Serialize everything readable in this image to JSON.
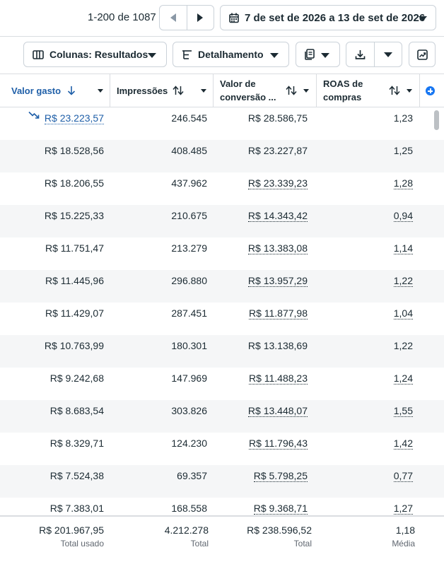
{
  "pagination": {
    "range_text": "1-200 de 1087"
  },
  "date_range": {
    "label": "7 de set de 2026 a 13 de set de 2026"
  },
  "toolbar": {
    "columns_label": "Colunas: Resultados",
    "breakdown_label": "Detalhamento"
  },
  "table": {
    "headers": {
      "spend": "Valor gasto",
      "impressions": "Impressões",
      "conversion_value": "Valor de conversão ...",
      "conversion_value_line1": "Valor de",
      "conversion_value_line2": "conversão ...",
      "roas_line1": "ROAS de",
      "roas_line2": "compras"
    },
    "rows": [
      {
        "spend": "R$ 23.223,57",
        "impressions": "246.545",
        "conversion_value": "R$ 28.586,75",
        "roas": "1,23",
        "spend_link": true,
        "conv_dotted": false,
        "roas_dotted": false
      },
      {
        "spend": "R$ 18.528,56",
        "impressions": "408.485",
        "conversion_value": "R$ 23.227,87",
        "roas": "1,25",
        "conv_dotted": false,
        "roas_dotted": false
      },
      {
        "spend": "R$ 18.206,55",
        "impressions": "437.962",
        "conversion_value": "R$ 23.339,23",
        "roas": "1,28",
        "conv_dotted": true,
        "roas_dotted": true
      },
      {
        "spend": "R$ 15.225,33",
        "impressions": "210.675",
        "conversion_value": "R$ 14.343,42",
        "roas": "0,94",
        "conv_dotted": true,
        "roas_dotted": true
      },
      {
        "spend": "R$ 11.751,47",
        "impressions": "213.279",
        "conversion_value": "R$ 13.383,08",
        "roas": "1,14",
        "conv_dotted": true,
        "roas_dotted": true
      },
      {
        "spend": "R$ 11.445,96",
        "impressions": "296.880",
        "conversion_value": "R$ 13.957,29",
        "roas": "1,22",
        "conv_dotted": true,
        "roas_dotted": true
      },
      {
        "spend": "R$ 11.429,07",
        "impressions": "287.451",
        "conversion_value": "R$ 11.877,98",
        "roas": "1,04",
        "conv_dotted": true,
        "roas_dotted": true
      },
      {
        "spend": "R$ 10.763,99",
        "impressions": "180.301",
        "conversion_value": "R$ 13.138,69",
        "roas": "1,22",
        "conv_dotted": false,
        "roas_dotted": false
      },
      {
        "spend": "R$ 9.242,68",
        "impressions": "147.969",
        "conversion_value": "R$ 11.488,23",
        "roas": "1,24",
        "conv_dotted": true,
        "roas_dotted": true
      },
      {
        "spend": "R$ 8.683,54",
        "impressions": "303.826",
        "conversion_value": "R$ 13.448,07",
        "roas": "1,55",
        "conv_dotted": true,
        "roas_dotted": true
      },
      {
        "spend": "R$ 8.329,71",
        "impressions": "124.230",
        "conversion_value": "R$ 11.796,43",
        "roas": "1,42",
        "conv_dotted": true,
        "roas_dotted": true
      },
      {
        "spend": "R$ 7.524,38",
        "impressions": "69.357",
        "conversion_value": "R$ 5.798,25",
        "roas": "0,77",
        "conv_dotted": true,
        "roas_dotted": true
      },
      {
        "spend": "R$ 7.383,01",
        "impressions": "168.558",
        "conversion_value": "R$ 9.368,71",
        "roas": "1,27",
        "conv_dotted": true,
        "roas_dotted": true
      }
    ],
    "totals": {
      "spend": "R$ 201.967,95",
      "spend_label": "Total usado",
      "impressions": "4.212.278",
      "impressions_label": "Total",
      "conversion_value": "R$ 238.596,52",
      "conversion_value_label": "Total",
      "roas": "1,18",
      "roas_label": "Média"
    }
  },
  "icons": {
    "calendar": "calendar-icon",
    "columns": "columns-icon",
    "breakdown": "breakdown-icon",
    "reports": "reports-icon",
    "export": "download-icon",
    "chart": "chart-icon",
    "trend": "trend-down-icon"
  },
  "colors": {
    "link": "#1f5fa8",
    "accent": "#1877f2",
    "alt_row": "#f5f6f7",
    "border": "#dadde1"
  }
}
